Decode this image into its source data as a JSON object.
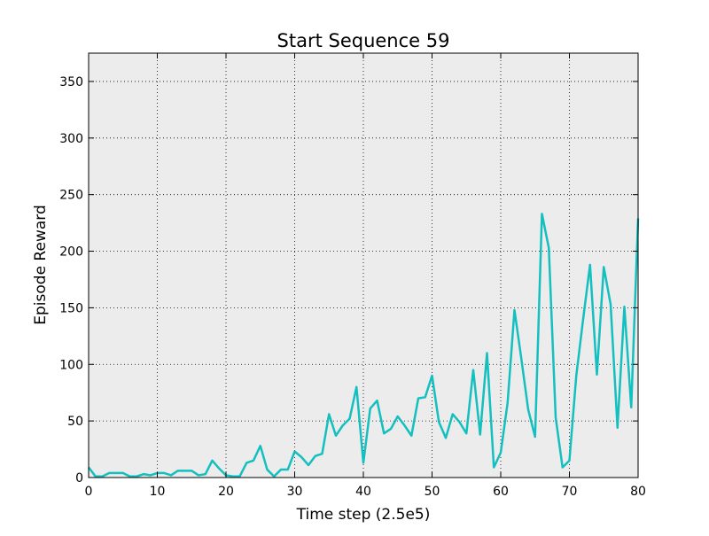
{
  "chart_data": {
    "type": "line",
    "title": "Start Sequence 59",
    "xlabel": "Time step (2.5e5)",
    "ylabel": "Episode Reward",
    "xlim": [
      0,
      80
    ],
    "ylim": [
      0,
      375
    ],
    "x_ticks": [
      0,
      10,
      20,
      30,
      40,
      50,
      60,
      70,
      80
    ],
    "y_ticks": [
      0,
      50,
      100,
      150,
      200,
      250,
      300,
      350
    ],
    "grid": true,
    "legend": "none",
    "colors": {
      "plot_background": "#ececec",
      "line": "#13bfbf",
      "grid": "#000000",
      "axes": "#000000"
    },
    "series": [
      {
        "x": [
          0,
          1,
          2,
          3,
          4,
          5,
          6,
          7,
          8,
          9,
          10,
          11,
          12,
          13,
          14,
          15,
          16,
          17,
          18,
          19,
          20,
          21,
          22,
          23,
          24,
          25,
          26,
          27,
          28,
          29,
          30,
          31,
          32,
          33,
          34,
          35,
          36,
          37,
          38,
          39,
          40,
          41,
          42,
          43,
          44,
          45,
          46,
          47,
          48,
          49,
          50,
          51,
          52,
          53,
          54,
          55,
          56,
          57,
          58,
          59,
          60,
          61,
          62,
          63,
          64,
          65,
          66,
          67,
          68,
          69,
          70,
          71,
          72,
          73,
          74,
          75,
          76,
          77,
          78,
          79,
          80
        ],
        "values": [
          9,
          1,
          1,
          4,
          4,
          4,
          1,
          1,
          3,
          2,
          4,
          4,
          2,
          6,
          6,
          6,
          2,
          3,
          15,
          8,
          2,
          1,
          1,
          13,
          15,
          28,
          7,
          1,
          7,
          7,
          23,
          18,
          11,
          19,
          21,
          56,
          37,
          46,
          52,
          80,
          13,
          61,
          68,
          39,
          43,
          54,
          46,
          37,
          70,
          71,
          90,
          49,
          35,
          56,
          49,
          39,
          95,
          38,
          110,
          9,
          22,
          66,
          148,
          105,
          60,
          36,
          233,
          203,
          53,
          9,
          15,
          90,
          140,
          188,
          91,
          186,
          153,
          44,
          151,
          62,
          229
        ]
      }
    ]
  }
}
